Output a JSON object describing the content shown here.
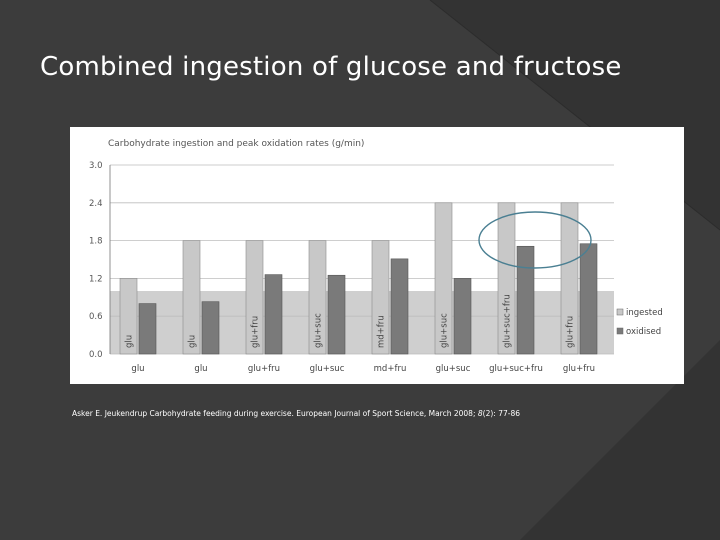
{
  "slide": {
    "title": "Combined ingestion of glucose and fructose",
    "citation": {
      "before_italic": "Asker E. Jeukendrup Carbohydrate feeding during exercise. European Journal of Sport Science, March 2008; ",
      "italic": "8",
      "after_italic": "(2): 77-86"
    }
  },
  "colors": {
    "background": "#3c3c3c",
    "background_shape": "#333333",
    "ingested_bar": "#c8c8c8",
    "oxidised_bar": "#7a7a7a",
    "highlight_band": "#cfcfcf",
    "annotation_ellipse": "#4a7f92"
  },
  "chart_data": {
    "type": "bar",
    "title": "Carbohydrate ingestion and peak oxidation rates (g/min)",
    "categories": [
      "glu",
      "glu",
      "glu+fru",
      "glu+suc",
      "md+fru",
      "glu+suc",
      "glu+suc+fru",
      "glu+fru"
    ],
    "bar_labels": [
      "glu",
      "glu",
      "glu+fru",
      "glu+suc",
      "md+fru",
      "glu+suc",
      "glu+suc+fru",
      "glu+fru"
    ],
    "series": [
      {
        "name": "ingested",
        "values": [
          1.2,
          1.8,
          1.8,
          1.8,
          1.8,
          2.4,
          2.4,
          2.4
        ]
      },
      {
        "name": "oxidised",
        "values": [
          0.8,
          0.83,
          1.26,
          1.25,
          1.51,
          1.2,
          1.71,
          1.75
        ]
      }
    ],
    "yticks": [
      "0.0",
      "0.6",
      "1.2",
      "1.8",
      "2.4",
      "3.0"
    ],
    "ylim": [
      0,
      3.0
    ],
    "grid": true,
    "legend_position": "right",
    "shaded_band": [
      0,
      1.0
    ],
    "annotation": "ellipse around glu+suc+fru and glu+fru"
  }
}
